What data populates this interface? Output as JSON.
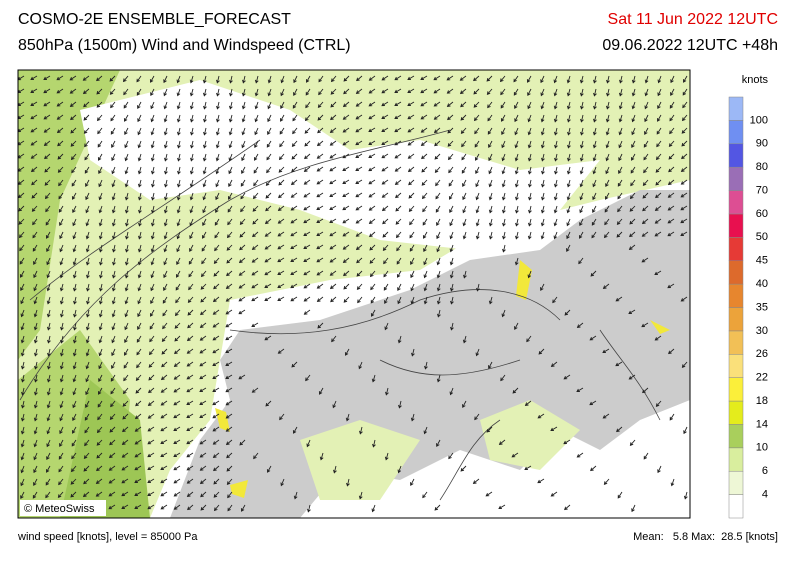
{
  "header": {
    "title": "COSMO-2E ENSEMBLE_FORECAST",
    "subtitle": "850hPa (1500m) Wind and Windspeed (CTRL)",
    "valid_time": "Sat 11 Jun 2022 12UTC",
    "run": "09.06.2022 12UTC +48h"
  },
  "legend": {
    "unit": "knots",
    "colors": [
      "#ffffff",
      "#eef7d6",
      "#d9ee9e",
      "#a9cf5c",
      "#e4ec1c",
      "#fbef3a",
      "#fae07a",
      "#f2c056",
      "#eca33a",
      "#e7862e",
      "#dd6a2c",
      "#e63a36",
      "#e8104f",
      "#dd4e93",
      "#9a6eb6",
      "#5356e3",
      "#6f8ff2",
      "#9cb8f6",
      "#c3d3fa"
    ],
    "labels": [
      "4",
      "6",
      "10",
      "14",
      "18",
      "22",
      "26",
      "30",
      "35",
      "40",
      "45",
      "50",
      "60",
      "70",
      "80",
      "90",
      "100"
    ]
  },
  "map": {
    "credit": "© MeteoSwiss"
  },
  "footer": {
    "description": "wind speed [knots], level = 85000 Pa",
    "stats": "Mean:   5.8 Max:  28.5 [knots]"
  }
}
